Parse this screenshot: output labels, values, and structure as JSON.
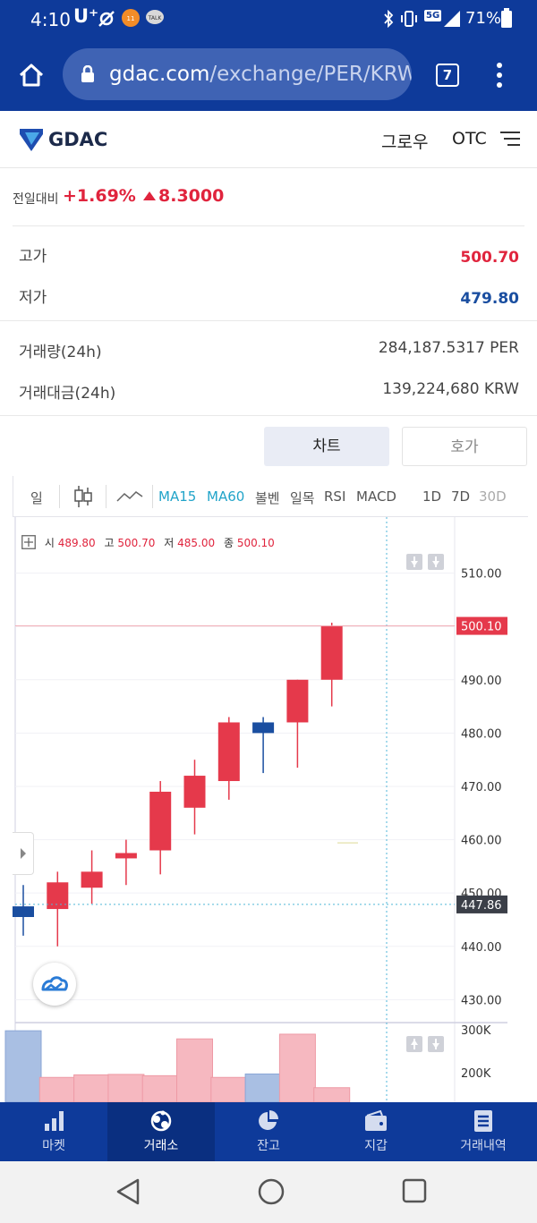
{
  "status_bar": {
    "time": "4:10",
    "carrier": "U⁺",
    "network": "5G",
    "battery": "71%"
  },
  "browser": {
    "url_domain": "gdac.com",
    "url_path": "/exchange/PER/KRW",
    "tab_count": "7"
  },
  "header": {
    "logo_text": "GDAC",
    "grow_label": "그로우",
    "otc_label": "OTC"
  },
  "ticker": {
    "change_label": "전일대비",
    "change_pct": "+1.69%",
    "change_abs": "8.3000"
  },
  "stats": {
    "high_label": "고가",
    "high_value": "500.70",
    "low_label": "저가",
    "low_value": "479.80",
    "volume_label": "거래량(24h)",
    "volume_value": "284,187.5317 PER",
    "amount_label": "거래대금(24h)",
    "amount_value": "139,224,680 KRW"
  },
  "tabs": {
    "chart_label": "차트",
    "orderbook_label": "호가"
  },
  "toolbar": {
    "period_label": "일",
    "ma15": "MA15",
    "ma60": "MA60",
    "bollinger": "볼벤",
    "ichimoku": "일목",
    "rsi": "RSI",
    "macd": "MACD",
    "range_1d": "1D",
    "range_7d": "7D",
    "range_30d": "30D"
  },
  "ohlc_legend": {
    "open_label": "시",
    "open": "489.80",
    "high_label": "고",
    "high": "500.70",
    "low_label": "저",
    "low": "485.00",
    "close_label": "종",
    "close": "500.10"
  },
  "chart_data": {
    "type": "candlestick",
    "y_ticks": [
      "510.00",
      "500.00",
      "490.00",
      "480.00",
      "470.00",
      "460.00",
      "450.00",
      "440.00",
      "430.00"
    ],
    "y_tick_values": [
      510,
      500,
      490,
      480,
      470,
      460,
      450,
      440,
      430
    ],
    "ylim": [
      425.7,
      520.5
    ],
    "current_price_label": "500.10",
    "current_price": 500.1,
    "crosshair_price_label": "447.86",
    "crosshair_price": 447.86,
    "candles": [
      {
        "open": 447.5,
        "high": 451.5,
        "low": 442.0,
        "close": 445.5
      },
      {
        "open": 447.0,
        "high": 454.0,
        "low": 440.0,
        "close": 452.0
      },
      {
        "open": 451.0,
        "high": 458.0,
        "low": 448.0,
        "close": 454.0
      },
      {
        "open": 456.5,
        "high": 460.0,
        "low": 451.5,
        "close": 457.5
      },
      {
        "open": 458.0,
        "high": 471.0,
        "low": 453.5,
        "close": 469.0
      },
      {
        "open": 466.0,
        "high": 475.0,
        "low": 461.0,
        "close": 472.0
      },
      {
        "open": 471.0,
        "high": 483.0,
        "low": 467.5,
        "close": 482.0
      },
      {
        "open": 482.0,
        "high": 483.0,
        "low": 472.5,
        "close": 480.0
      },
      {
        "open": 482.0,
        "high": 490.0,
        "low": 473.5,
        "close": 490.0
      },
      {
        "open": 490.0,
        "high": 500.7,
        "low": 485.0,
        "close": 500.1
      }
    ],
    "volume_ticks": [
      "300K",
      "200K"
    ],
    "volume_tick_values": [
      300000,
      200000
    ],
    "volume_ylim": [
      131000,
      315000
    ],
    "volumes": [
      298000,
      189000,
      195000,
      196000,
      193000,
      279000,
      189000,
      197000,
      290000,
      165000
    ]
  },
  "bottom_nav": {
    "market": "마켓",
    "exchange": "거래소",
    "balance": "잔고",
    "wallet": "지갑",
    "history": "거래내역"
  },
  "colors": {
    "brand": "#0e3a9a",
    "up": "#e5394b",
    "down": "#1a4ea0",
    "accent": "#21a4c9"
  }
}
